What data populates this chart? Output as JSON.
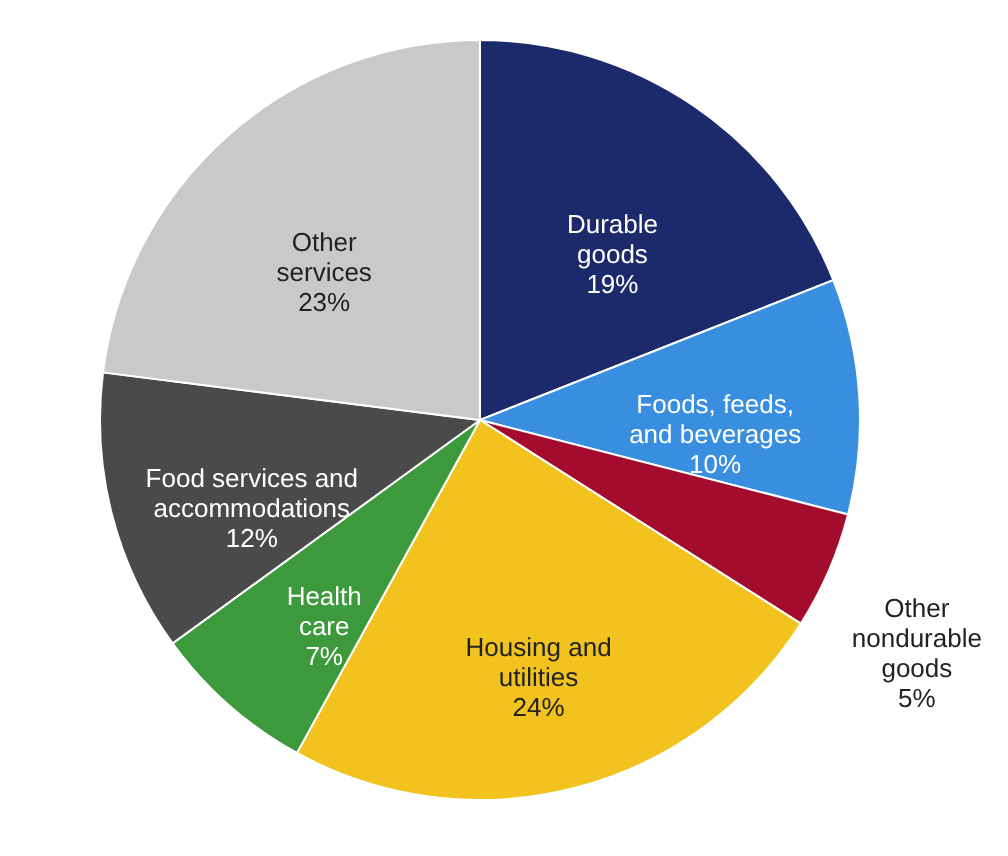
{
  "chart_data": {
    "type": "pie",
    "categories": [
      "Durable\ngoods",
      "Foods, feeds,\nand beverages",
      "Other\nnondurable\ngoods",
      "Housing and\nutilities",
      "Health\ncare",
      "Food services and\naccommodations",
      "Other\nservices"
    ],
    "values": [
      19,
      10,
      5,
      24,
      7,
      12,
      23
    ],
    "colors": [
      "#1c2a6b",
      "#3a8ee0",
      "#a30c2c",
      "#f2c21e",
      "#3d9a3c",
      "#4a4a4a",
      "#c9c9c9"
    ],
    "value_labels": [
      "19%",
      "10%",
      "5%",
      "24%",
      "7%",
      "12%",
      "23%"
    ],
    "legend": false
  }
}
